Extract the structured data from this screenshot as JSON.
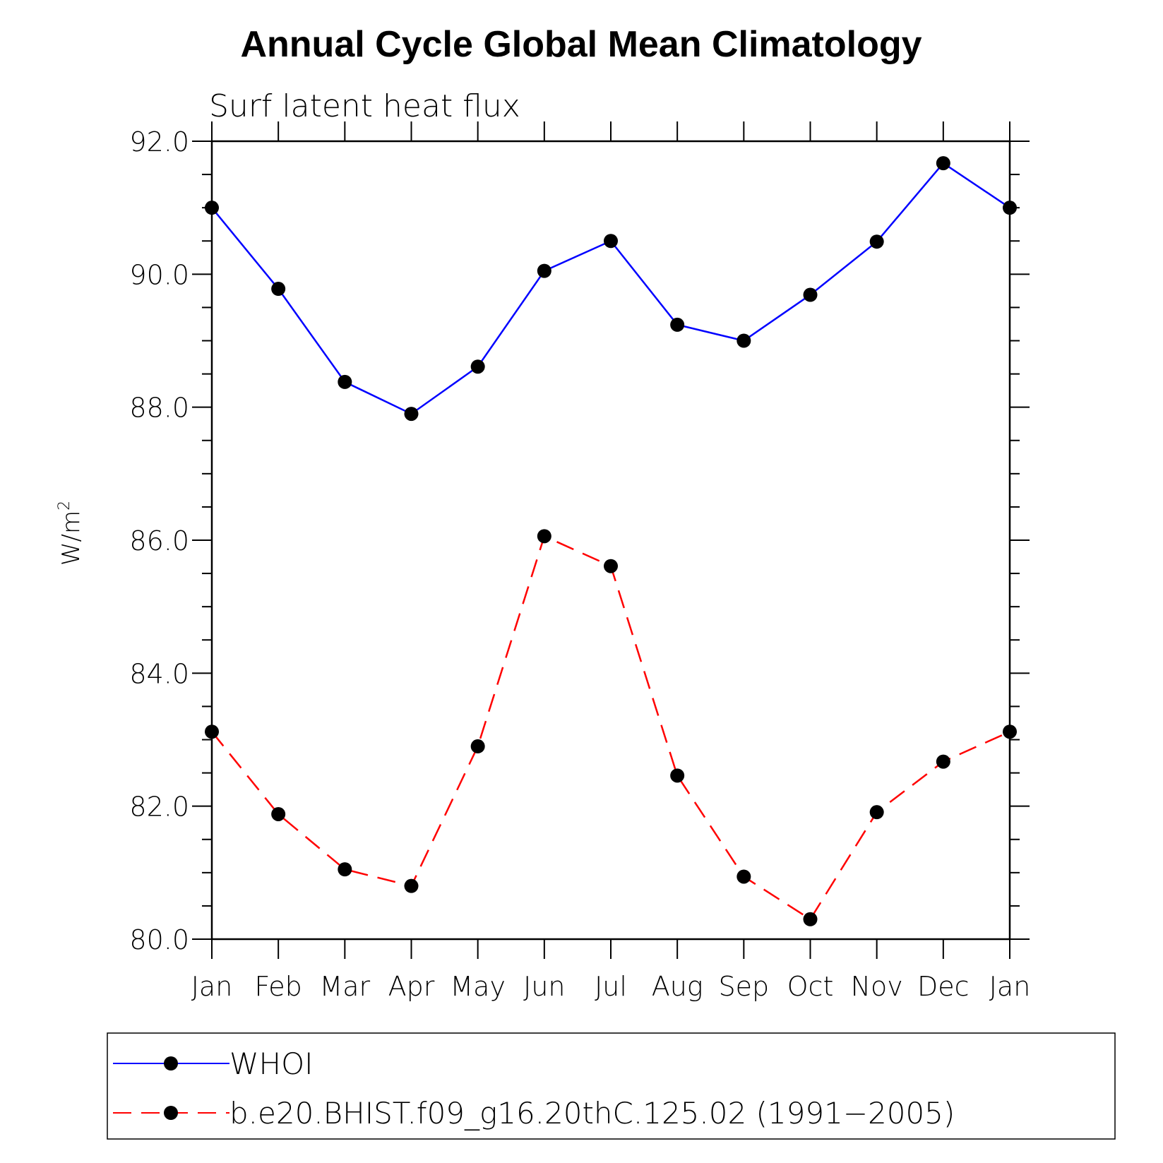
{
  "chart_data": {
    "type": "line",
    "title": "Annual Cycle Global Mean Climatology",
    "subtitle": "Surf latent heat flux",
    "ylabel": "W/m",
    "ylabel_sup": "2",
    "categories": [
      "Jan",
      "Feb",
      "Mar",
      "Apr",
      "May",
      "Jun",
      "Jul",
      "Aug",
      "Sep",
      "Oct",
      "Nov",
      "Dec",
      "Jan"
    ],
    "ylim": [
      80.0,
      92.0
    ],
    "yticks": [
      "80.0",
      "82.0",
      "84.0",
      "86.0",
      "88.0",
      "90.0",
      "92.0"
    ],
    "grid": false,
    "legend_placement": "bottom",
    "series": [
      {
        "name": "WHOI",
        "color": "#0000ff",
        "dash": "solid",
        "values": [
          91.0,
          89.78,
          88.38,
          87.9,
          88.61,
          90.05,
          90.5,
          89.24,
          89.0,
          89.69,
          90.49,
          91.67,
          91.0
        ]
      },
      {
        "name": "b.e20.BHIST.f09_g16.20thC.125.02 (1991−2005)",
        "color": "#ff0000",
        "dash": "dashed",
        "values": [
          83.12,
          81.88,
          81.05,
          80.8,
          82.9,
          86.06,
          85.61,
          82.46,
          80.94,
          80.3,
          81.91,
          82.67,
          83.12
        ]
      }
    ]
  }
}
